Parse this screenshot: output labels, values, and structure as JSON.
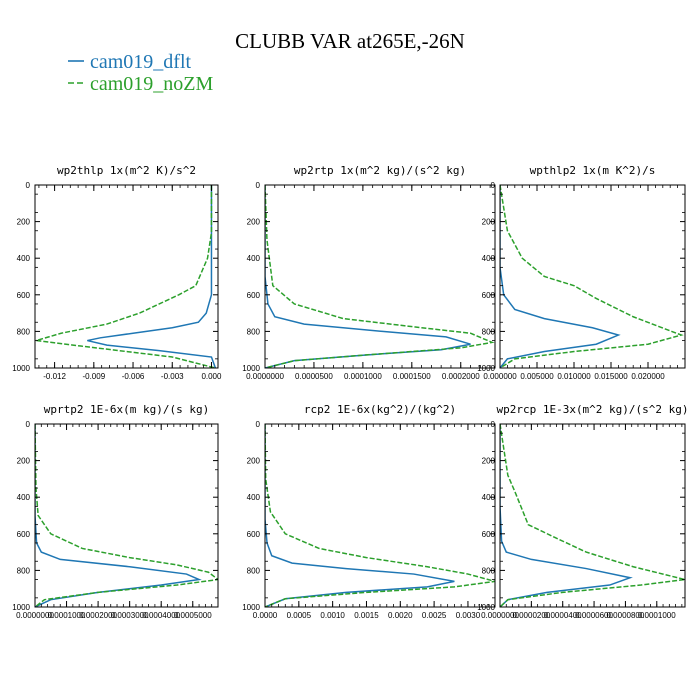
{
  "figure": {
    "title": "CLUBB VAR at265E,-26N"
  },
  "legend": [
    {
      "name": "cam019_dflt",
      "color": "#1f77b4",
      "dash": "solid"
    },
    {
      "name": "cam019_noZM",
      "color": "#2ca02c",
      "dash": "dashed"
    }
  ],
  "chart_data": [
    {
      "type": "line",
      "title": "wp2thlp  1x(m^2 K)/s^2",
      "xlim": [
        -0.0135,
        0.0005
      ],
      "ylim": [
        0,
        1000
      ],
      "y_inverted": true,
      "xticks": [
        -0.012,
        -0.009,
        -0.006,
        -0.003,
        0.0
      ],
      "xtick_labels": [
        "-0.012",
        "-0.009",
        "-0.006",
        "-0.003",
        "0.000"
      ],
      "yticks": [
        0,
        200,
        400,
        600,
        800,
        1000
      ],
      "series": [
        {
          "name": "cam019_dflt",
          "x": [
            0.0,
            0.0,
            -0.0002,
            -0.0004,
            -0.001,
            -0.003,
            -0.006,
            -0.0085,
            -0.0095,
            -0.008,
            -0.004,
            0.0,
            0.0003
          ],
          "y": [
            0,
            600,
            650,
            700,
            750,
            780,
            810,
            835,
            850,
            875,
            905,
            940,
            1000
          ]
        },
        {
          "name": "cam019_noZM",
          "x": [
            0.0,
            0.0,
            -0.0003,
            -0.0012,
            -0.0025,
            -0.004,
            -0.0055,
            -0.008,
            -0.0115,
            -0.0134,
            -0.01,
            -0.003,
            0.0003
          ],
          "y": [
            0,
            260,
            400,
            550,
            600,
            650,
            700,
            760,
            810,
            850,
            880,
            940,
            1000
          ]
        }
      ]
    },
    {
      "type": "line",
      "title": "wp2rtp  1x(m^2 kg)/(s^2 kg)",
      "xlim": [
        0,
        0.000235
      ],
      "ylim": [
        0,
        1000
      ],
      "y_inverted": true,
      "xticks": [
        0,
        5e-05,
        0.0001,
        0.00015,
        0.0002
      ],
      "xtick_labels": [
        "0.0000000",
        "0.0000500",
        "0.0001000",
        "0.0001500",
        "0.0002000"
      ],
      "yticks": [
        0,
        200,
        400,
        600,
        800,
        1000
      ],
      "series": [
        {
          "name": "cam019_dflt",
          "x": [
            0,
            0,
            3e-06,
            1e-05,
            4e-05,
            0.00012,
            0.000185,
            0.00021,
            0.00018,
            0.0001,
            3e-05,
            0
          ],
          "y": [
            0,
            500,
            650,
            720,
            760,
            800,
            830,
            870,
            900,
            930,
            960,
            1000
          ]
        },
        {
          "name": "cam019_noZM",
          "x": [
            0,
            2e-06,
            8e-06,
            3e-05,
            8e-05,
            0.00016,
            0.00021,
            0.000232,
            0.0002,
            0.0001,
            3e-05,
            0
          ],
          "y": [
            0,
            300,
            550,
            650,
            730,
            780,
            810,
            860,
            890,
            930,
            960,
            1000
          ]
        }
      ]
    },
    {
      "type": "line",
      "title": "wpthlp2  1x(m K^2)/s",
      "xlim": [
        0,
        0.025
      ],
      "ylim": [
        0,
        1000
      ],
      "y_inverted": true,
      "xticks": [
        0,
        0.005,
        0.01,
        0.015,
        0.02
      ],
      "xtick_labels": [
        "0.000000",
        "0.005000",
        "0.010000",
        "0.015000",
        "0.020000"
      ],
      "yticks": [
        0,
        200,
        400,
        600,
        800,
        1000
      ],
      "series": [
        {
          "name": "cam019_dflt",
          "x": [
            0,
            0,
            0.0005,
            0.002,
            0.006,
            0.0125,
            0.016,
            0.013,
            0.006,
            0.001,
            0
          ],
          "y": [
            0,
            450,
            600,
            680,
            730,
            780,
            820,
            870,
            910,
            950,
            1000
          ]
        },
        {
          "name": "cam019_noZM",
          "x": [
            0,
            0.001,
            0.003,
            0.006,
            0.01,
            0.013,
            0.018,
            0.0245,
            0.02,
            0.01,
            0.002,
            0
          ],
          "y": [
            0,
            250,
            400,
            500,
            550,
            620,
            720,
            820,
            870,
            910,
            950,
            1000
          ]
        }
      ]
    },
    {
      "type": "line",
      "title": "wprtp2  1E-6x(m kg)/(s kg)",
      "xlim": [
        0,
        0.00058
      ],
      "ylim": [
        0,
        1000
      ],
      "y_inverted": true,
      "xticks": [
        0,
        0.0001,
        0.0002,
        0.0003,
        0.0004,
        0.0005
      ],
      "xtick_labels": [
        "0.0000000",
        "0.0001000",
        "0.0002000",
        "0.0003000",
        "0.0004000",
        "0.0005000"
      ],
      "yticks": [
        0,
        200,
        400,
        600,
        800,
        1000
      ],
      "series": [
        {
          "name": "cam019_dflt",
          "x": [
            0,
            0,
            5e-06,
            2e-05,
            8e-05,
            0.0003,
            0.00048,
            0.00052,
            0.0004,
            0.0002,
            5e-05,
            0
          ],
          "y": [
            0,
            500,
            650,
            700,
            740,
            780,
            820,
            850,
            880,
            920,
            960,
            1000
          ]
        },
        {
          "name": "cam019_noZM",
          "x": [
            0,
            3e-06,
            1e-05,
            5e-05,
            0.00015,
            0.0003,
            0.00045,
            0.00055,
            0.00058,
            0.00045,
            0.0002,
            3e-05,
            0
          ],
          "y": [
            0,
            350,
            500,
            600,
            680,
            730,
            770,
            810,
            850,
            880,
            920,
            960,
            1000
          ]
        }
      ]
    },
    {
      "type": "line",
      "title": "rcp2  1E-6x(kg^2)/(kg^2)",
      "xlim": [
        0,
        0.0034
      ],
      "ylim": [
        0,
        1000
      ],
      "y_inverted": true,
      "xticks": [
        0,
        0.0005,
        0.001,
        0.0015,
        0.002,
        0.0025,
        0.003
      ],
      "xtick_labels": [
        "0.0000",
        "0.0005",
        "0.0010",
        "0.0015",
        "0.0020",
        "0.0025",
        "0.0030"
      ],
      "yticks": [
        0,
        200,
        400,
        600,
        800,
        1000
      ],
      "series": [
        {
          "name": "cam019_dflt",
          "x": [
            0,
            0,
            3e-05,
            0.0001,
            0.0004,
            0.0012,
            0.0022,
            0.0028,
            0.0024,
            0.0012,
            0.0003,
            0
          ],
          "y": [
            0,
            520,
            650,
            720,
            760,
            790,
            820,
            860,
            890,
            920,
            955,
            1000
          ]
        },
        {
          "name": "cam019_noZM",
          "x": [
            0,
            1e-05,
            8e-05,
            0.0003,
            0.0008,
            0.0015,
            0.0024,
            0.003,
            0.0034,
            0.0028,
            0.0015,
            0.0003,
            0
          ],
          "y": [
            0,
            300,
            480,
            600,
            680,
            730,
            780,
            820,
            860,
            890,
            920,
            955,
            1000
          ]
        }
      ]
    },
    {
      "type": "line",
      "title": "wp2rcp  1E-3x(m^2 kg)/(s^2 kg)",
      "xlim": [
        0,
        0.000118
      ],
      "ylim": [
        0,
        1000
      ],
      "y_inverted": true,
      "xticks": [
        0,
        2e-05,
        4e-05,
        6e-05,
        8e-05,
        0.0001
      ],
      "xtick_labels": [
        "0.0000000",
        "0.0000200",
        "0.0000400",
        "0.0000600",
        "0.0000800",
        "0.0001000"
      ],
      "yticks": [
        0,
        200,
        400,
        600,
        800,
        1000
      ],
      "series": [
        {
          "name": "cam019_dflt",
          "x": [
            0,
            0,
            1e-06,
            4e-06,
            2e-05,
            5.5e-05,
            8.3e-05,
            7e-05,
            3e-05,
            5e-06,
            0
          ],
          "y": [
            0,
            450,
            640,
            700,
            740,
            790,
            840,
            880,
            920,
            960,
            1000
          ]
        },
        {
          "name": "cam019_noZM",
          "x": [
            0,
            5e-06,
            1e-05,
            1.8e-05,
            3.5e-05,
            5.5e-05,
            8.5e-05,
            0.000118,
            9e-05,
            4e-05,
            5e-06,
            0
          ],
          "y": [
            0,
            280,
            380,
            550,
            620,
            700,
            780,
            850,
            880,
            920,
            960,
            1000
          ]
        }
      ]
    }
  ]
}
